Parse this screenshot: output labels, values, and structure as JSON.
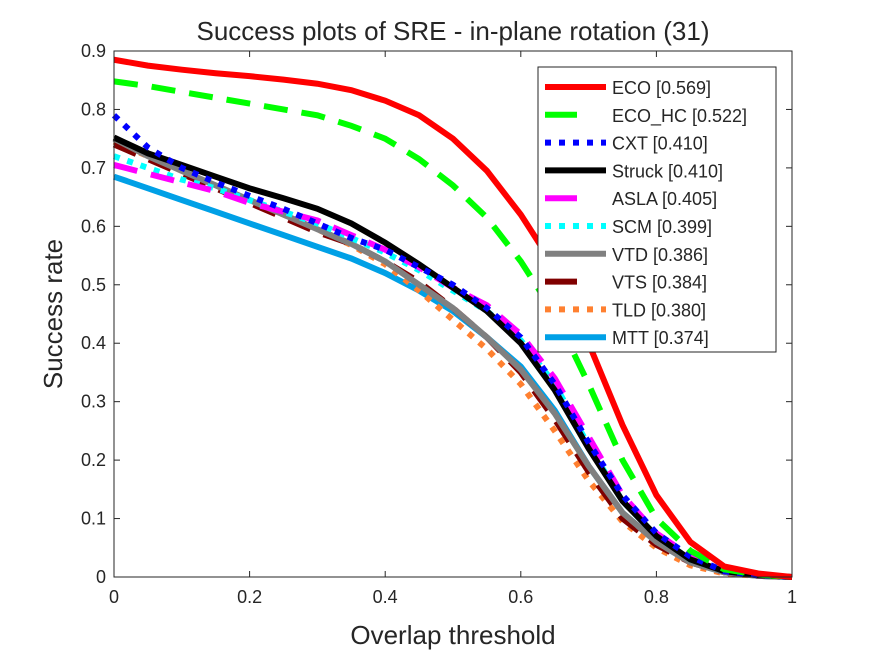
{
  "chart_data": {
    "type": "line",
    "title": "Success plots of SRE - in-plane rotation (31)",
    "xlabel": "Overlap threshold",
    "ylabel": "Success rate",
    "xlim": [
      0,
      1
    ],
    "ylim": [
      0,
      0.9
    ],
    "xticks": [
      "0",
      "0.2",
      "0.4",
      "0.6",
      "0.8",
      "1"
    ],
    "yticks": [
      "0",
      "0.1",
      "0.2",
      "0.3",
      "0.4",
      "0.5",
      "0.6",
      "0.7",
      "0.8",
      "0.9"
    ],
    "grid": false,
    "legend_position": "top-right",
    "x": [
      0,
      0.05,
      0.1,
      0.15,
      0.2,
      0.25,
      0.3,
      0.35,
      0.4,
      0.45,
      0.5,
      0.55,
      0.6,
      0.65,
      0.7,
      0.75,
      0.8,
      0.85,
      0.9,
      0.95,
      1
    ],
    "series": [
      {
        "name": "ECO [0.569]",
        "color": "#ff0000",
        "style": "solid",
        "values": [
          0.885,
          0.875,
          0.868,
          0.862,
          0.857,
          0.851,
          0.844,
          0.833,
          0.815,
          0.79,
          0.75,
          0.695,
          0.62,
          0.53,
          0.4,
          0.26,
          0.14,
          0.06,
          0.018,
          0.006,
          0
        ]
      },
      {
        "name": "ECO_HC [0.522]",
        "color": "#00ff00",
        "style": "dashed",
        "values": [
          0.848,
          0.84,
          0.83,
          0.82,
          0.81,
          0.8,
          0.79,
          0.772,
          0.75,
          0.715,
          0.67,
          0.615,
          0.54,
          0.45,
          0.33,
          0.2,
          0.1,
          0.045,
          0.013,
          0.004,
          0
        ]
      },
      {
        "name": "CXT [0.410]",
        "color": "#0000ff",
        "style": "dotted",
        "values": [
          0.79,
          0.735,
          0.7,
          0.675,
          0.652,
          0.63,
          0.605,
          0.58,
          0.56,
          0.53,
          0.5,
          0.46,
          0.41,
          0.33,
          0.23,
          0.14,
          0.075,
          0.035,
          0.01,
          0.003,
          0
        ]
      },
      {
        "name": "Struck [0.410]",
        "color": "#000000",
        "style": "solid",
        "values": [
          0.752,
          0.725,
          0.705,
          0.685,
          0.665,
          0.648,
          0.63,
          0.605,
          0.572,
          0.535,
          0.495,
          0.455,
          0.4,
          0.32,
          0.22,
          0.13,
          0.07,
          0.03,
          0.01,
          0.003,
          0
        ]
      },
      {
        "name": "ASLA [0.405]",
        "color": "#ff00ff",
        "style": "dashed",
        "values": [
          0.705,
          0.69,
          0.675,
          0.66,
          0.64,
          0.625,
          0.61,
          0.585,
          0.56,
          0.53,
          0.495,
          0.465,
          0.415,
          0.34,
          0.24,
          0.14,
          0.075,
          0.035,
          0.01,
          0.003,
          0
        ]
      },
      {
        "name": "SCM [0.399]",
        "color": "#00ffff",
        "style": "dotted",
        "values": [
          0.72,
          0.7,
          0.68,
          0.665,
          0.645,
          0.625,
          0.605,
          0.58,
          0.555,
          0.525,
          0.49,
          0.455,
          0.405,
          0.33,
          0.225,
          0.13,
          0.07,
          0.03,
          0.01,
          0.003,
          0
        ]
      },
      {
        "name": "VTD [0.386]",
        "color": "#808080",
        "style": "solid",
        "values": [
          0.75,
          0.72,
          0.695,
          0.67,
          0.645,
          0.62,
          0.595,
          0.57,
          0.54,
          0.5,
          0.46,
          0.41,
          0.355,
          0.28,
          0.19,
          0.11,
          0.06,
          0.025,
          0.008,
          0.002,
          0
        ]
      },
      {
        "name": "VTS [0.384]",
        "color": "#800000",
        "style": "dashed",
        "values": [
          0.74,
          0.715,
          0.69,
          0.665,
          0.64,
          0.615,
          0.59,
          0.57,
          0.54,
          0.505,
          0.46,
          0.41,
          0.35,
          0.27,
          0.18,
          0.1,
          0.055,
          0.025,
          0.008,
          0.002,
          0
        ]
      },
      {
        "name": "TLD [0.380]",
        "color": "#ff8030",
        "style": "dotted",
        "values": [
          0.745,
          0.72,
          0.695,
          0.67,
          0.645,
          0.62,
          0.595,
          0.568,
          0.535,
          0.49,
          0.44,
          0.39,
          0.33,
          0.25,
          0.165,
          0.095,
          0.05,
          0.02,
          0.006,
          0.002,
          0
        ]
      },
      {
        "name": "MTT [0.374]",
        "color": "#00a0e6",
        "style": "solid",
        "values": [
          0.685,
          0.665,
          0.645,
          0.625,
          0.605,
          0.585,
          0.565,
          0.545,
          0.52,
          0.49,
          0.455,
          0.41,
          0.36,
          0.285,
          0.19,
          0.11,
          0.06,
          0.025,
          0.008,
          0.002,
          0
        ]
      }
    ]
  }
}
